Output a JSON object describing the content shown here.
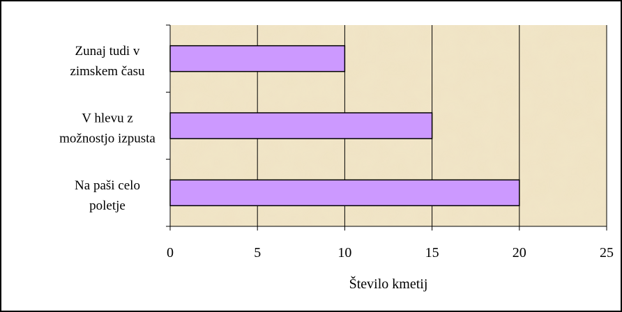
{
  "chart_data": {
    "type": "bar",
    "orientation": "horizontal",
    "categories": [
      [
        "Zunaj tudi v",
        "zimskem času"
      ],
      [
        "V hlevu z",
        "možnostjo izpusta"
      ],
      [
        "Na paši celo",
        "poletje"
      ]
    ],
    "values": [
      10,
      15,
      20
    ],
    "xlabel": "Število kmetij",
    "xlim": [
      0,
      25
    ],
    "xticks": [
      0,
      5,
      10,
      15,
      20,
      25
    ],
    "grid": "vertical",
    "legend": "none",
    "colors": {
      "bar_fill": "#cc99ff",
      "bar_stroke": "#000000",
      "plot_background": "#efe3c4",
      "gridline": "#000000"
    }
  }
}
